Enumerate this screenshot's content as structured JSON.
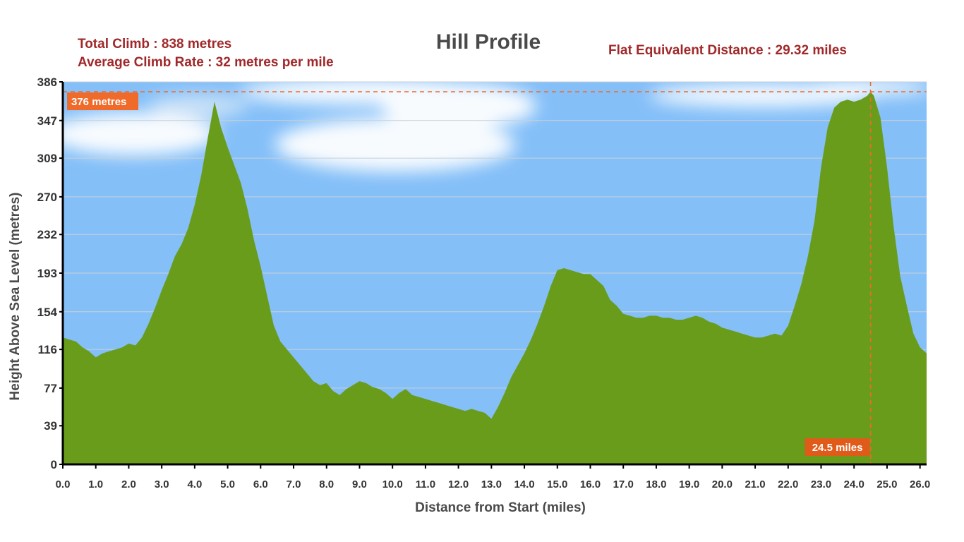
{
  "header": {
    "total_climb": "Total Climb : 838 metres",
    "average_climb_rate": "Average Climb Rate : 32 metres per mile",
    "flat_equivalent": "Flat Equivalent Distance : 29.32 miles"
  },
  "colors": {
    "terrain": "#6a9c1c",
    "sky": "#84bff8",
    "stat_text": "#a0282a",
    "marker": "#f06a2a"
  },
  "chart_data": {
    "type": "area",
    "title": "Hill Profile",
    "xlabel": "Distance from Start (miles)",
    "ylabel": "Height Above Sea Level (metres)",
    "xlim": [
      0,
      26.2
    ],
    "ylim": [
      0,
      386
    ],
    "grid": true,
    "x_ticks": [
      0.0,
      1.0,
      2.0,
      3.0,
      4.0,
      5.0,
      6.0,
      7.0,
      8.0,
      9.0,
      10.0,
      11.0,
      12.0,
      13.0,
      14.0,
      15.0,
      16.0,
      17.0,
      18.0,
      19.0,
      20.0,
      21.0,
      22.0,
      23.0,
      24.0,
      25.0,
      26.0
    ],
    "x_tick_labels": [
      "0.0",
      "1.0",
      "2.0",
      "3.0",
      "4.0",
      "5.0",
      "6.0",
      "7.0",
      "8.0",
      "9.0",
      "10.0",
      "11.0",
      "12.0",
      "13.0",
      "14.0",
      "15.0",
      "16.0",
      "17.0",
      "18.0",
      "19.0",
      "20.0",
      "21.0",
      "22.0",
      "23.0",
      "24.0",
      "25.0",
      "26.0"
    ],
    "y_ticks": [
      0,
      39,
      77,
      116,
      154,
      193,
      232,
      270,
      309,
      347,
      386
    ],
    "y_tick_labels": [
      "0",
      "39",
      "77",
      "116",
      "154",
      "193",
      "232",
      "270",
      "309",
      "347",
      "386"
    ],
    "series": [
      {
        "x": [
          0,
          0.2,
          0.4,
          0.6,
          0.8,
          1.0,
          1.2,
          1.4,
          1.6,
          1.8,
          2.0,
          2.2,
          2.4,
          2.6,
          2.8,
          3.0,
          3.2,
          3.4,
          3.6,
          3.8,
          4.0,
          4.2,
          4.4,
          4.6,
          4.8,
          5.0,
          5.2,
          5.4,
          5.6,
          5.8,
          6.0,
          6.2,
          6.4,
          6.6,
          6.8,
          7.0,
          7.2,
          7.4,
          7.6,
          7.8,
          8.0,
          8.2,
          8.4,
          8.6,
          8.8,
          9.0,
          9.2,
          9.4,
          9.6,
          9.8,
          10.0,
          10.2,
          10.4,
          10.6,
          10.8,
          11.0,
          11.2,
          11.4,
          11.6,
          11.8,
          12.0,
          12.2,
          12.4,
          12.6,
          12.8,
          13.0,
          13.2,
          13.4,
          13.6,
          13.8,
          14.0,
          14.2,
          14.4,
          14.6,
          14.8,
          15.0,
          15.2,
          15.4,
          15.6,
          15.8,
          16.0,
          16.2,
          16.4,
          16.6,
          16.8,
          17.0,
          17.2,
          17.4,
          17.6,
          17.8,
          18.0,
          18.2,
          18.4,
          18.6,
          18.8,
          19.0,
          19.2,
          19.4,
          19.6,
          19.8,
          20.0,
          20.2,
          20.4,
          20.6,
          20.8,
          21.0,
          21.2,
          21.4,
          21.6,
          21.8,
          22.0,
          22.2,
          22.4,
          22.6,
          22.8,
          23.0,
          23.2,
          23.4,
          23.6,
          23.8,
          24.0,
          24.2,
          24.4,
          24.5,
          24.6,
          24.8,
          25.0,
          25.2,
          25.4,
          25.6,
          25.8,
          26.0,
          26.2
        ],
        "y": [
          128,
          126,
          124,
          118,
          114,
          108,
          112,
          114,
          116,
          118,
          122,
          120,
          128,
          142,
          158,
          176,
          192,
          210,
          222,
          238,
          262,
          292,
          330,
          366,
          340,
          320,
          302,
          284,
          258,
          226,
          200,
          170,
          140,
          124,
          116,
          108,
          100,
          92,
          84,
          80,
          82,
          74,
          70,
          76,
          80,
          84,
          82,
          78,
          76,
          72,
          66,
          72,
          76,
          70,
          68,
          66,
          64,
          62,
          60,
          58,
          56,
          54,
          56,
          54,
          52,
          46,
          58,
          72,
          88,
          100,
          112,
          126,
          142,
          160,
          180,
          196,
          198,
          196,
          194,
          192,
          192,
          186,
          180,
          166,
          160,
          152,
          150,
          148,
          148,
          150,
          150,
          148,
          148,
          146,
          146,
          148,
          150,
          148,
          144,
          142,
          138,
          136,
          134,
          132,
          130,
          128,
          128,
          130,
          132,
          130,
          140,
          160,
          182,
          210,
          246,
          300,
          340,
          360,
          366,
          368,
          366,
          368,
          372,
          376,
          372,
          350,
          300,
          240,
          190,
          160,
          132,
          118,
          112
        ]
      }
    ],
    "annotations": [
      {
        "text": "376 metres",
        "y": 376
      },
      {
        "text": "24.5 miles",
        "x": 24.5
      }
    ]
  }
}
